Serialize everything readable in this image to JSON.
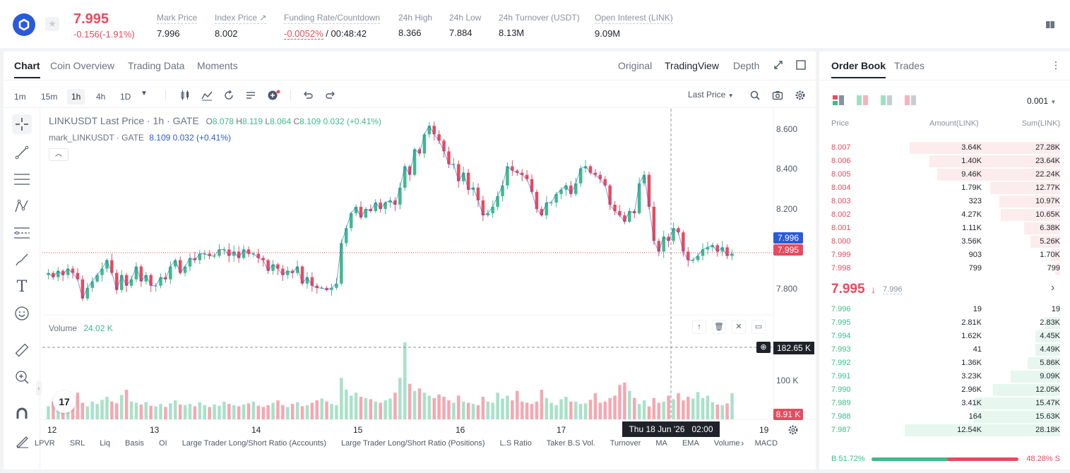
{
  "header": {
    "last_price": "7.995",
    "change": "-0.156(-1.91%)",
    "stats": [
      {
        "label": "Mark Price",
        "value": "7.996"
      },
      {
        "label": "Index Price ↗",
        "value": "8.002"
      },
      {
        "label": "Funding Rate/Countdown",
        "value_neg": "-0.0052%",
        "value": " / 00:48:42"
      },
      {
        "label": "24h High",
        "value": "8.366"
      },
      {
        "label": "24h Low",
        "value": "7.884"
      },
      {
        "label": "24h Turnover (USDT)",
        "value": "8.13M"
      },
      {
        "label": "Open Interest (LINK)",
        "value": "9.09M"
      }
    ]
  },
  "chart_tabs": [
    "Chart",
    "Coin Overview",
    "Trading Data",
    "Moments"
  ],
  "view_tabs": [
    "Original",
    "TradingView",
    "Depth"
  ],
  "timeframes": [
    "1m",
    "15m",
    "1h",
    "4h",
    "1D"
  ],
  "price_source": "Last Price",
  "legend": {
    "symbol": "LINKUSDT Last Price · 1h · GATE",
    "o_lbl": "O",
    "o": "8.078",
    "h_lbl": "H",
    "h": "8.119",
    "l_lbl": "L",
    "l": "8.064",
    "c_lbl": "C",
    "c": "8.109",
    "chg": "0.032 (+0.41%)",
    "mark_symbol": "mark_LINKUSDT · GATE",
    "mark_vals": "8.109  0.032  (+0.41%)"
  },
  "volume_legend": {
    "label": "Volume",
    "value": "24.02 K"
  },
  "crosshair": {
    "date_label": "Thu 18 Jun '26   02:00",
    "volume_label": "182.65 K"
  },
  "price_tags": {
    "mark": "7.996",
    "last": "7.995",
    "volume": "8.91 K"
  },
  "indicators": [
    "LPVR",
    "SRL",
    "Liq",
    "Basis",
    "OI",
    "Large Trader Long/Short Ratio (Accounts)",
    "Large Trader Long/Short Ratio (Positions)",
    "L.S Ratio",
    "Taker B.S Vol.",
    "Turnover",
    "MA",
    "EMA",
    "Volume",
    "MACD"
  ],
  "colors": {
    "up": "#3dbb8a",
    "down": "#e84a5f",
    "mark": "#2a5ada"
  },
  "chart_data": {
    "type": "candlestick",
    "x_tick_labels": [
      "12",
      "13",
      "14",
      "15",
      "16",
      "17",
      "19"
    ],
    "y_tick_labels": [
      "8.600",
      "8.400",
      "8.200",
      "7.800"
    ],
    "volume_tick_labels": [
      "100 K"
    ],
    "y_range": [
      7.71,
      8.67
    ],
    "close_path": [
      7.9,
      7.88,
      7.91,
      7.89,
      7.92,
      7.9,
      7.87,
      7.78,
      7.83,
      7.86,
      7.89,
      7.92,
      7.96,
      7.9,
      7.82,
      7.89,
      7.84,
      7.87,
      7.93,
      7.86,
      7.89,
      7.84,
      7.84,
      7.88,
      7.87,
      7.93,
      7.96,
      7.9,
      7.93,
      7.97,
      7.96,
      7.99,
      7.99,
      7.98,
      7.98,
      8.01,
      8.01,
      7.98,
      8.0,
      7.97,
      8.01,
      7.99,
      7.99,
      7.97,
      7.96,
      7.91,
      7.94,
      7.92,
      7.89,
      7.91,
      7.9,
      7.93,
      7.85,
      7.88,
      7.84,
      7.83,
      7.83,
      7.82,
      7.83,
      7.85,
      8.04,
      8.11,
      8.18,
      8.21,
      8.16,
      8.2,
      8.19,
      8.23,
      8.2,
      8.23,
      8.24,
      8.22,
      8.3,
      8.4,
      8.36,
      8.48,
      8.46,
      8.55,
      8.59,
      8.55,
      8.52,
      8.47,
      8.41,
      8.41,
      8.33,
      8.37,
      8.29,
      8.3,
      8.24,
      8.17,
      8.18,
      8.21,
      8.26,
      8.31,
      8.4,
      8.38,
      8.37,
      8.36,
      8.34,
      8.28,
      8.2,
      8.17,
      8.23,
      8.23,
      8.27,
      8.29,
      8.31,
      8.27,
      8.32,
      8.39,
      8.4,
      8.37,
      8.36,
      8.34,
      8.31,
      8.22,
      8.19,
      8.17,
      8.14,
      8.19,
      8.18,
      8.32,
      8.36,
      8.21,
      8.05,
      8.0,
      8.07,
      8.05,
      8.11,
      8.09,
      8.0,
      7.96,
      7.96,
      7.98,
      8.01,
      8.02,
      8.03,
      8.0,
      8.02,
      7.98,
      7.99
    ],
    "volume_path": [
      22,
      30,
      25,
      28,
      24,
      35,
      45,
      28,
      22,
      30,
      26,
      33,
      38,
      30,
      27,
      41,
      50,
      30,
      28,
      25,
      29,
      23,
      22,
      26,
      21,
      27,
      32,
      25,
      24,
      26,
      22,
      29,
      24,
      21,
      25,
      23,
      30,
      26,
      24,
      22,
      25,
      27,
      30,
      23,
      21,
      24,
      28,
      32,
      24,
      21,
      26,
      29,
      22,
      24,
      28,
      32,
      35,
      30,
      26,
      24,
      70,
      50,
      40,
      45,
      38,
      36,
      34,
      30,
      28,
      32,
      35,
      45,
      70,
      130,
      60,
      48,
      52,
      45,
      40,
      36,
      42,
      38,
      32,
      28,
      40,
      30,
      28,
      26,
      24,
      38,
      30,
      28,
      45,
      35,
      40,
      32,
      48,
      30,
      28,
      26,
      30,
      50,
      36,
      28,
      24,
      34,
      38,
      30,
      30,
      26,
      27,
      33,
      44,
      28,
      30,
      36,
      40,
      58,
      62,
      48,
      36,
      26,
      32,
      22,
      36,
      28,
      30,
      40,
      34,
      44,
      32,
      38,
      35,
      46,
      36,
      40,
      29,
      25,
      24,
      27,
      44,
      22
    ]
  },
  "order_book": {
    "tabs": [
      "Order Book",
      "Trades"
    ],
    "precision": "0.001",
    "headers": [
      "Price",
      "Amount(LINK)",
      "Sum(LINK)"
    ],
    "asks": [
      {
        "price": "8.007",
        "amount": "3.64K",
        "sum": "27.28K",
        "depth": 0.97
      },
      {
        "price": "8.006",
        "amount": "1.40K",
        "sum": "23.64K",
        "depth": 0.84
      },
      {
        "price": "8.005",
        "amount": "9.46K",
        "sum": "22.24K",
        "depth": 0.79
      },
      {
        "price": "8.004",
        "amount": "1.79K",
        "sum": "12.77K",
        "depth": 0.45
      },
      {
        "price": "8.003",
        "amount": "323",
        "sum": "10.97K",
        "depth": 0.39
      },
      {
        "price": "8.002",
        "amount": "4.27K",
        "sum": "10.65K",
        "depth": 0.38
      },
      {
        "price": "8.001",
        "amount": "1.11K",
        "sum": "6.38K",
        "depth": 0.23
      },
      {
        "price": "8.000",
        "amount": "3.56K",
        "sum": "5.26K",
        "depth": 0.19
      },
      {
        "price": "7.999",
        "amount": "903",
        "sum": "1.70K",
        "depth": 0.06
      },
      {
        "price": "7.998",
        "amount": "799",
        "sum": "799",
        "depth": 0.03
      }
    ],
    "mid_price": "7.995",
    "mid_arrow": "↓",
    "mid_mark": "7.996",
    "bids": [
      {
        "price": "7.996",
        "amount": "19",
        "sum": "19",
        "depth": 0.01
      },
      {
        "price": "7.995",
        "amount": "2.81K",
        "sum": "2.83K",
        "depth": 0.1
      },
      {
        "price": "7.994",
        "amount": "1.62K",
        "sum": "4.45K",
        "depth": 0.16
      },
      {
        "price": "7.993",
        "amount": "41",
        "sum": "4.49K",
        "depth": 0.16
      },
      {
        "price": "7.992",
        "amount": "1.36K",
        "sum": "5.86K",
        "depth": 0.21
      },
      {
        "price": "7.991",
        "amount": "3.23K",
        "sum": "9.09K",
        "depth": 0.32
      },
      {
        "price": "7.990",
        "amount": "2.96K",
        "sum": "12.05K",
        "depth": 0.43
      },
      {
        "price": "7.989",
        "amount": "3.41K",
        "sum": "15.47K",
        "depth": 0.55
      },
      {
        "price": "7.988",
        "amount": "164",
        "sum": "15.63K",
        "depth": 0.56
      },
      {
        "price": "7.987",
        "amount": "12.54K",
        "sum": "28.18K",
        "depth": 1.0
      }
    ],
    "buy_ratio": "B 51.72%",
    "sell_ratio": "48.28% S",
    "buy_fraction": 0.5172
  }
}
